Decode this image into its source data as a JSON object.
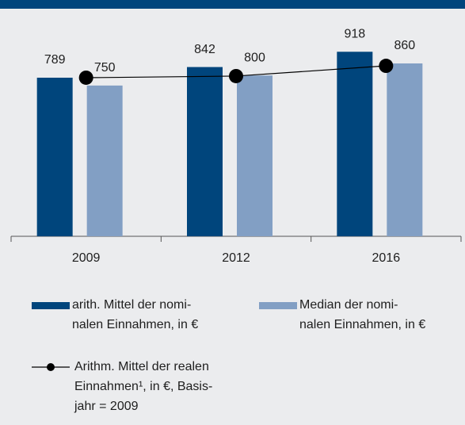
{
  "chart_data": {
    "type": "bar",
    "categories": [
      "2009",
      "2012",
      "2016"
    ],
    "series": [
      {
        "name": [
          "arith. Mittel der nomi-",
          "nalen Einnahmen, in €"
        ],
        "color": "#00457c",
        "values": [
          789,
          842,
          918
        ]
      },
      {
        "name": [
          "Median der nomi-",
          "nalen Einnahmen, in €"
        ],
        "color": "#829fc4",
        "values": [
          750,
          800,
          860
        ]
      },
      {
        "type": "line",
        "name": [
          "Arithm. Mittel der realen",
          "Einnahmen¹, in €, Basis-",
          "jahr = 2009"
        ],
        "color": "#000000",
        "values": [
          789,
          797,
          848
        ]
      }
    ]
  }
}
